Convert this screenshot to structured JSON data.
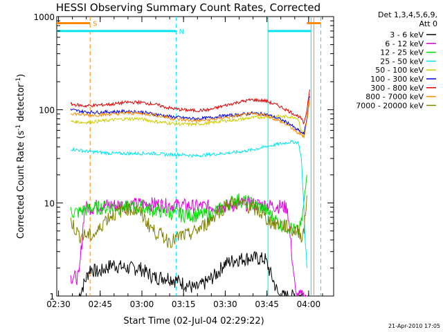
{
  "chart_data": {
    "type": "line",
    "title": "HESSI Observing Summary Count Rates, Corrected",
    "xlabel": "Start Time (02-Jul-04 02:29:22)",
    "ylabel_main": "Corrected Count Rate (s",
    "ylabel_sup1": "-1",
    "ylabel_mid": " detector",
    "ylabel_sup2": "-1",
    "ylabel_end": ")",
    "footer": "21-Apr-2010 17:05",
    "yscale": "log",
    "ylim": [
      1,
      1000
    ],
    "xlim": [
      "02:29:22",
      "04:09:00"
    ],
    "xtick_labels": [
      "02:30",
      "02:45",
      "03:00",
      "03:15",
      "03:30",
      "03:45",
      "04:00"
    ],
    "xtick_minutes": [
      0.63,
      15.63,
      30.63,
      45.63,
      60.63,
      75.63,
      90.63
    ],
    "ytick_labels": [
      "1",
      "10",
      "100",
      "1000"
    ],
    "ytick_values": [
      1,
      10,
      100,
      1000
    ],
    "legend_header": [
      "Det 1,3,4,5,6,9,",
      "Att 0"
    ],
    "legend_placement": "right-outside",
    "series": [
      {
        "name": "3 - 6 keV",
        "color": "#000000",
        "x": [
          8,
          12,
          15,
          20,
          25,
          30,
          35,
          40,
          45,
          50,
          55,
          58,
          60,
          63,
          65,
          70,
          75,
          80,
          85,
          90
        ],
        "y": [
          1,
          2,
          1.8,
          2.2,
          2,
          2,
          1.6,
          1.6,
          1.4,
          1.2,
          1.5,
          1.8,
          2.2,
          2.4,
          2.5,
          2.6,
          2.5,
          1,
          1,
          1
        ]
      },
      {
        "name": "6 - 12 keV",
        "color": "#dd00dd",
        "x": [
          5,
          8,
          10,
          13,
          15,
          20,
          25,
          30,
          35,
          40,
          45,
          50,
          55,
          60,
          65,
          70,
          75,
          80,
          83,
          86,
          88,
          90
        ],
        "y": [
          1.6,
          1.6,
          9,
          9,
          9.5,
          9.5,
          9.5,
          9.8,
          9.8,
          9.5,
          9.5,
          9.2,
          9.2,
          9.2,
          9.8,
          9.8,
          9.5,
          9.3,
          9,
          1,
          1,
          1
        ]
      },
      {
        "name": "12 - 25 keV",
        "color": "#00dd00",
        "x": [
          5,
          8,
          10,
          15,
          20,
          25,
          30,
          35,
          40,
          45,
          50,
          55,
          60,
          62,
          65,
          70,
          75,
          78,
          80,
          84,
          86,
          87,
          88,
          89,
          90
        ],
        "y": [
          8,
          8,
          8.5,
          9,
          9,
          9,
          9,
          8.5,
          8,
          7.5,
          7.5,
          7.5,
          9,
          10,
          11,
          10,
          8.5,
          7,
          6,
          5.5,
          5,
          5,
          6,
          10,
          20
        ]
      },
      {
        "name": "25 - 50 keV",
        "color": "#00e5ee",
        "x": [
          5,
          10,
          15,
          20,
          25,
          30,
          35,
          40,
          45,
          50,
          55,
          60,
          65,
          70,
          75,
          80,
          84,
          86,
          87,
          88,
          89,
          90
        ],
        "y": [
          38,
          36,
          35,
          34,
          34,
          34,
          34,
          33,
          33,
          32,
          33,
          34,
          35,
          37,
          40,
          43,
          45,
          45,
          44,
          30,
          8,
          2
        ]
      },
      {
        "name": "50 - 100 keV",
        "color": "#cccc00",
        "x": [
          5,
          10,
          15,
          20,
          25,
          30,
          35,
          40,
          45,
          50,
          55,
          60,
          65,
          70,
          75,
          80,
          84,
          86,
          87,
          88,
          89,
          90,
          91
        ],
        "y": [
          75,
          73,
          75,
          78,
          80,
          80,
          75,
          72,
          70,
          70,
          72,
          76,
          78,
          82,
          84,
          85,
          84,
          83,
          78,
          60,
          50,
          80,
          120
        ]
      },
      {
        "name": "100 - 300 keV",
        "color": "#0000dd",
        "x": [
          5,
          10,
          15,
          20,
          25,
          30,
          35,
          40,
          45,
          50,
          55,
          60,
          65,
          70,
          75,
          80,
          84,
          86,
          87,
          88,
          89,
          90,
          91
        ],
        "y": [
          100,
          95,
          94,
          95,
          96,
          95,
          90,
          85,
          82,
          80,
          82,
          86,
          88,
          92,
          90,
          80,
          70,
          62,
          60,
          57,
          55,
          80,
          140
        ]
      },
      {
        "name": "300 - 800 keV",
        "color": "#dd0000",
        "x": [
          5,
          10,
          15,
          20,
          25,
          30,
          35,
          40,
          45,
          50,
          55,
          60,
          65,
          70,
          75,
          80,
          84,
          86,
          87,
          88,
          89,
          90,
          91
        ],
        "y": [
          115,
          110,
          112,
          115,
          120,
          120,
          115,
          105,
          100,
          98,
          100,
          110,
          120,
          128,
          125,
          110,
          95,
          88,
          85,
          80,
          70,
          100,
          165
        ]
      },
      {
        "name": "800 - 7000 keV",
        "color": "#ff8800",
        "x": [
          5,
          10,
          15,
          20,
          25,
          30,
          35,
          40,
          45,
          50,
          55,
          60,
          65,
          70,
          75,
          80,
          84,
          86,
          87,
          88,
          89,
          90,
          91
        ],
        "y": [
          92,
          88,
          88,
          90,
          92,
          92,
          88,
          82,
          78,
          76,
          78,
          82,
          86,
          90,
          88,
          76,
          66,
          58,
          56,
          54,
          52,
          75,
          135
        ]
      },
      {
        "name": "7000 - 20000 keV",
        "color": "#808000",
        "x": [
          5,
          8,
          10,
          13,
          15,
          17,
          20,
          22,
          25,
          27,
          30,
          32,
          35,
          38,
          40,
          42,
          45,
          47,
          50,
          52,
          55,
          57,
          60,
          62,
          65,
          68,
          70,
          73,
          75,
          78,
          80,
          83,
          85,
          87,
          88,
          89,
          90
        ],
        "y": [
          6.5,
          4.5,
          4.5,
          4.5,
          5,
          6.5,
          7.5,
          8,
          9,
          8.5,
          8,
          6.5,
          5,
          4.5,
          4,
          4,
          4.5,
          4.5,
          5,
          5.5,
          6.5,
          7.5,
          9,
          10,
          10,
          9.5,
          9,
          8,
          7,
          6,
          6,
          5.5,
          5,
          5,
          4.5,
          5,
          12
        ]
      }
    ],
    "state_bars": [
      {
        "label": "S",
        "color": "#ff8800",
        "segments": [
          [
            0,
            12
          ],
          [
            90,
            95
          ]
        ],
        "value_y": 850
      },
      {
        "label": "N",
        "color": "#00e5ee",
        "segments": [
          [
            0,
            43
          ],
          [
            76,
            91.5
          ]
        ],
        "value_y": 700
      }
    ],
    "vertical_markers": [
      {
        "x": 12,
        "color": "#ff8800",
        "style": "dashed"
      },
      {
        "x": 43,
        "color": "#00e5ee",
        "style": "dashed"
      },
      {
        "x": 76,
        "color": "#00e5ee",
        "style": "solid"
      },
      {
        "x": 91.5,
        "color": "#00e5ee",
        "style": "solid"
      },
      {
        "x": 92.5,
        "color": "#ff8800",
        "style": "solid"
      },
      {
        "x": 95,
        "color": "#00e5ee",
        "style": "dashed"
      }
    ]
  }
}
